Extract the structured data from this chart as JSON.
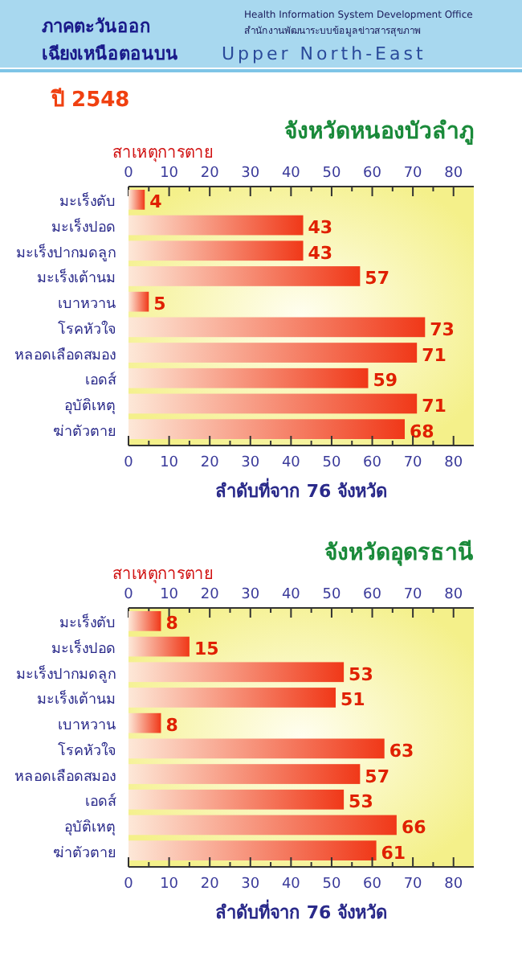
{
  "chart_data": [
    {
      "type": "bar",
      "orientation": "horizontal",
      "title": "จังหวัดหนองบัวลำภู",
      "subtitle": "ปี 2548",
      "ylabel": "สาเหตุการตาย",
      "xlabel": "ลำดับที่จาก 76 จังหวัด",
      "annotations": [
        "ภาคตะวันออก",
        "เฉียงเหนือตอนบน",
        "Upper North-East",
        "Health Information System Development Office",
        "สำนักงานพัฒนาระบบข้อมูลข่าวสารสุขภาพ"
      ],
      "categories": [
        "มะเร็งตับ",
        "มะเร็งปอด",
        "มะเร็งปากมดลูก",
        "มะเร็งเต้านม",
        "เบาหวาน",
        "โรคหัวใจ",
        "หลอดเลือดสมอง",
        "เอดส์",
        "อุบัติเหตุ",
        "ฆ่าตัวตาย"
      ],
      "values": [
        4,
        43,
        43,
        57,
        5,
        73,
        71,
        59,
        71,
        68
      ],
      "color": "#f03818",
      "data_labels": true,
      "grid": false,
      "xlim": [
        0,
        85
      ],
      "xticks": [
        0,
        {
          "value": 5,
          "label": null
        },
        10,
        {
          "value": 15,
          "label": null
        },
        20,
        {
          "value": 25,
          "label": null
        },
        30,
        {
          "value": 35,
          "label": null
        },
        40,
        {
          "value": 45,
          "label": null
        },
        50,
        {
          "value": 55,
          "label": null
        },
        60,
        {
          "value": 65,
          "label": null
        },
        70,
        {
          "value": 75,
          "label": null
        },
        80
      ],
      "x2lim": [
        0,
        85
      ],
      "x2ticks": [
        0,
        {
          "value": 5,
          "label": null
        },
        10,
        {
          "value": 15,
          "label": null
        },
        20,
        {
          "value": 25,
          "label": null
        },
        30,
        {
          "value": 35,
          "label": null
        },
        40,
        {
          "value": 45,
          "label": null
        },
        50,
        {
          "value": 55,
          "label": null
        },
        60,
        {
          "value": 65,
          "label": null
        },
        70,
        {
          "value": 75,
          "label": null
        },
        80
      ]
    },
    {
      "type": "bar",
      "orientation": "horizontal",
      "title": "จังหวัดอุดรธานี",
      "ylabel": "สาเหตุการตาย",
      "xlabel": "ลำดับที่จาก 76 จังหวัด",
      "categories": [
        "มะเร็งตับ",
        "มะเร็งปอด",
        "มะเร็งปากมดลูก",
        "มะเร็งเต้านม",
        "เบาหวาน",
        "โรคหัวใจ",
        "หลอดเลือดสมอง",
        "เอดส์",
        "อุบัติเหตุ",
        "ฆ่าตัวตาย"
      ],
      "values": [
        8,
        15,
        53,
        51,
        8,
        63,
        57,
        53,
        66,
        61
      ],
      "color": "#f03818",
      "data_labels": true,
      "grid": false,
      "xlim": [
        0,
        85
      ],
      "xticks": [
        0,
        {
          "value": 5,
          "label": null
        },
        10,
        {
          "value": 15,
          "label": null
        },
        20,
        {
          "value": 25,
          "label": null
        },
        30,
        {
          "value": 35,
          "label": null
        },
        40,
        {
          "value": 45,
          "label": null
        },
        50,
        {
          "value": 55,
          "label": null
        },
        60,
        {
          "value": 65,
          "label": null
        },
        70,
        {
          "value": 75,
          "label": null
        },
        80
      ],
      "x2lim": [
        0,
        85
      ],
      "x2ticks": [
        0,
        {
          "value": 5,
          "label": null
        },
        10,
        {
          "value": 15,
          "label": null
        },
        20,
        {
          "value": 25,
          "label": null
        },
        30,
        {
          "value": 35,
          "label": null
        },
        40,
        {
          "value": 45,
          "label": null
        },
        50,
        {
          "value": 55,
          "label": null
        },
        60,
        {
          "value": 65,
          "label": null
        },
        70,
        {
          "value": 75,
          "label": null
        },
        80
      ]
    }
  ]
}
